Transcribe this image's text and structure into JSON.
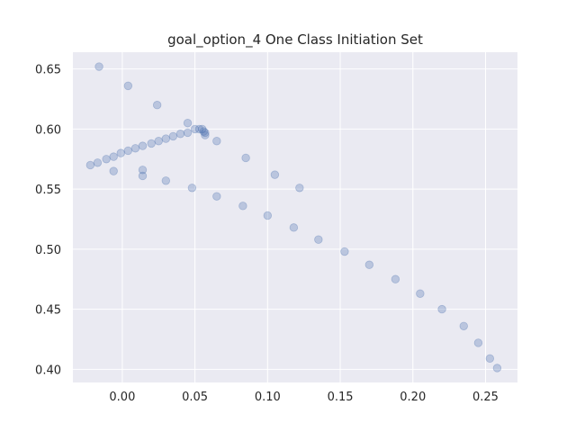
{
  "chart_data": {
    "type": "scatter",
    "title": "goal_option_4 One Class Initiation Set",
    "xlabel": "",
    "ylabel": "",
    "xlim": [
      -0.034,
      0.272
    ],
    "ylim": [
      0.389,
      0.664
    ],
    "xticks": [
      0.0,
      0.05,
      0.1,
      0.15,
      0.2,
      0.25
    ],
    "xtick_labels": [
      "0.00",
      "0.05",
      "0.10",
      "0.15",
      "0.20",
      "0.25"
    ],
    "yticks": [
      0.4,
      0.45,
      0.5,
      0.55,
      0.6,
      0.65
    ],
    "ytick_labels": [
      "0.40",
      "0.45",
      "0.50",
      "0.55",
      "0.60",
      "0.65"
    ],
    "grid": true,
    "colors": {
      "background": "#eaeaf2",
      "grid": "#ffffff",
      "marker": "#4c72b0"
    },
    "marker_alpha": 0.3,
    "points": [
      {
        "x": -0.016,
        "y": 0.652
      },
      {
        "x": 0.004,
        "y": 0.636
      },
      {
        "x": 0.024,
        "y": 0.62
      },
      {
        "x": 0.045,
        "y": 0.605
      },
      {
        "x": 0.05,
        "y": 0.6
      },
      {
        "x": 0.053,
        "y": 0.6
      },
      {
        "x": 0.055,
        "y": 0.6
      },
      {
        "x": 0.056,
        "y": 0.598
      },
      {
        "x": 0.057,
        "y": 0.597
      },
      {
        "x": 0.057,
        "y": 0.595
      },
      {
        "x": 0.065,
        "y": 0.59
      },
      {
        "x": 0.045,
        "y": 0.597
      },
      {
        "x": 0.04,
        "y": 0.596
      },
      {
        "x": 0.035,
        "y": 0.594
      },
      {
        "x": 0.03,
        "y": 0.592
      },
      {
        "x": 0.025,
        "y": 0.59
      },
      {
        "x": 0.02,
        "y": 0.588
      },
      {
        "x": 0.014,
        "y": 0.586
      },
      {
        "x": 0.009,
        "y": 0.584
      },
      {
        "x": 0.004,
        "y": 0.582
      },
      {
        "x": -0.001,
        "y": 0.58
      },
      {
        "x": -0.006,
        "y": 0.577
      },
      {
        "x": -0.011,
        "y": 0.575
      },
      {
        "x": -0.017,
        "y": 0.572
      },
      {
        "x": -0.022,
        "y": 0.57
      },
      {
        "x": -0.006,
        "y": 0.565
      },
      {
        "x": 0.014,
        "y": 0.566
      },
      {
        "x": 0.014,
        "y": 0.561
      },
      {
        "x": 0.03,
        "y": 0.557
      },
      {
        "x": 0.048,
        "y": 0.551
      },
      {
        "x": 0.065,
        "y": 0.544
      },
      {
        "x": 0.085,
        "y": 0.576
      },
      {
        "x": 0.105,
        "y": 0.562
      },
      {
        "x": 0.122,
        "y": 0.551
      },
      {
        "x": 0.083,
        "y": 0.536
      },
      {
        "x": 0.1,
        "y": 0.528
      },
      {
        "x": 0.118,
        "y": 0.518
      },
      {
        "x": 0.135,
        "y": 0.508
      },
      {
        "x": 0.153,
        "y": 0.498
      },
      {
        "x": 0.17,
        "y": 0.487
      },
      {
        "x": 0.188,
        "y": 0.475
      },
      {
        "x": 0.205,
        "y": 0.463
      },
      {
        "x": 0.22,
        "y": 0.45
      },
      {
        "x": 0.235,
        "y": 0.436
      },
      {
        "x": 0.245,
        "y": 0.422
      },
      {
        "x": 0.253,
        "y": 0.409
      },
      {
        "x": 0.258,
        "y": 0.401
      }
    ]
  }
}
